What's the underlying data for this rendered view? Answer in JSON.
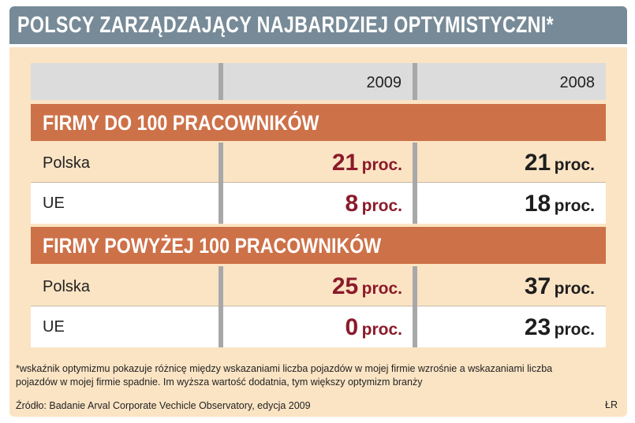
{
  "title": "POLSCY ZARZĄDZAJĄCY NAJBARDZIEJ OPTYMISTYCZNI*",
  "chart_data": {
    "type": "table",
    "columns": [
      "2009",
      "2008"
    ],
    "unit": "proc.",
    "groups": [
      {
        "label": "FIRMY DO 100 PRACOWNIKÓW",
        "rows": [
          {
            "label": "Polska",
            "values": [
              21,
              21
            ]
          },
          {
            "label": "UE",
            "values": [
              8,
              18
            ]
          }
        ]
      },
      {
        "label": "FIRMY POWYŻEJ 100 PRACOWNIKÓW",
        "rows": [
          {
            "label": "Polska",
            "values": [
              25,
              37
            ]
          },
          {
            "label": "UE",
            "values": [
              0,
              23
            ]
          }
        ]
      }
    ]
  },
  "footnote": {
    "line1": "*wskaźnik optymizmu pokazuje różnicę między wskazaniami liczba pojazdów w mojej firmie wzrośnie a wskazaniami liczba",
    "line2": "pojazdów w mojej firmie spadnie. Im wyższa wartość dodatnia, tym większy optymizm branży",
    "source": "Źródło: Badanie Arval Corporate Vechicle Observatory, edycja 2009"
  },
  "credit": "ŁR",
  "colors": {
    "title_bar": "#778a97",
    "panel": "#fbe4c4",
    "section": "#cd7148",
    "value_2009": "#8b1a2a",
    "value_2008": "#1e1e1e"
  }
}
